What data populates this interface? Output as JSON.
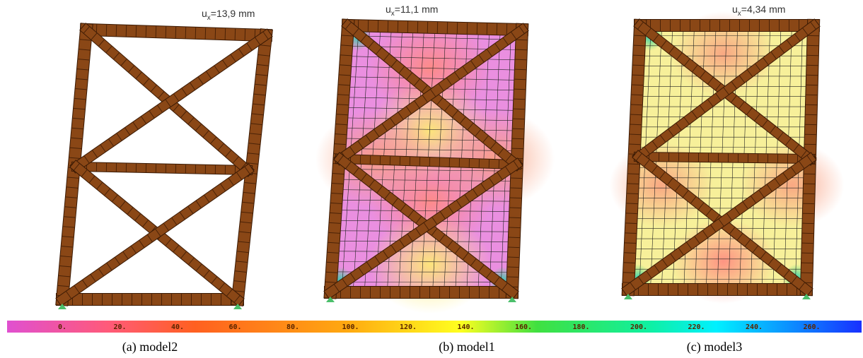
{
  "panels": [
    {
      "annotation": {
        "symbol": "u",
        "subscript": "x",
        "text": "=13,9 mm"
      },
      "caption": "(a) model2"
    },
    {
      "annotation": {
        "symbol": "u",
        "subscript": "x",
        "text": "=11,1 mm"
      },
      "caption": "(b) model1"
    },
    {
      "annotation": {
        "symbol": "u",
        "subscript": "x",
        "text": "=4,34 mm"
      },
      "caption": "(c) model3"
    }
  ],
  "colorbar": {
    "labels": [
      "0.",
      "20.",
      "40.",
      "60.",
      "80.",
      "100.",
      "120.",
      "140.",
      "160.",
      "180.",
      "200.",
      "220.",
      "240.",
      "260."
    ]
  }
}
